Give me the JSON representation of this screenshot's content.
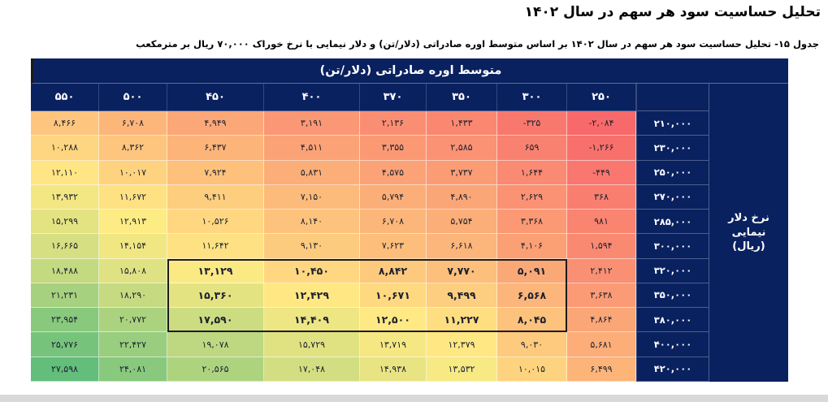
{
  "page": {
    "title": "تحلیل حساسیت سود هر سهم در سال ۱۴۰۲",
    "subtitle": "جدول ۱۵- تحلیل حساسیت سود هر سهم در سال ۱۴۰۲ بر اساس متوسط اوره صادراتی (دلار/تن) و دلار نیمایی با نرخ خوراک ۷۰,۰۰۰ ریال بر مترمکعب"
  },
  "chart_data": {
    "type": "heatmap",
    "title": "تحلیل حساسیت سود هر سهم در سال ۱۴۰۲",
    "col_header_label": "متوسط اوره صادراتی (دلار/تن)",
    "row_header_label": "نرخ دلار نیمایی (ریال)",
    "columns_display_order": "left-to-right",
    "columns": [
      550,
      500,
      450,
      400,
      370,
      350,
      300,
      250
    ],
    "rows": [
      210000,
      230000,
      250000,
      270000,
      285000,
      300000,
      320000,
      350000,
      380000,
      400000,
      420000
    ],
    "values": [
      [
        8466,
        6708,
        4949,
        3191,
        2136,
        1433,
        -325,
        -2084
      ],
      [
        10288,
        8362,
        6437,
        4511,
        3355,
        2585,
        659,
        -1266
      ],
      [
        12110,
        10017,
        7924,
        5831,
        4575,
        3737,
        1644,
        -449
      ],
      [
        13932,
        11672,
        9411,
        7150,
        5794,
        4890,
        2629,
        368
      ],
      [
        15299,
        12913,
        10526,
        8140,
        6708,
        5754,
        3368,
        981
      ],
      [
        16665,
        14154,
        11642,
        9130,
        7623,
        6618,
        4106,
        1594
      ],
      [
        18488,
        15808,
        13129,
        10450,
        8842,
        7770,
        5091,
        2412
      ],
      [
        21231,
        18290,
        15360,
        12429,
        10671,
        9499,
        6568,
        3638
      ],
      [
        23954,
        20772,
        17590,
        14409,
        12500,
        11227,
        8045,
        4864
      ],
      [
        25776,
        22427,
        19078,
        15729,
        13719,
        12379,
        9030,
        5681
      ],
      [
        27598,
        24081,
        20565,
        17048,
        14938,
        13532,
        10015,
        6499
      ]
    ],
    "highlight_box": {
      "row_start": 6,
      "row_end": 8,
      "col_start": 2,
      "col_end": 6
    },
    "color_scale": {
      "min_color": "#F8696B",
      "mid_color": "#FFEB84",
      "max_color": "#63BE7B",
      "midpoint_rule": "midpoint at 50% of min-max range"
    },
    "number_format": "persian-digits with comma thousands separator"
  },
  "colors": {
    "header_navy": "#0a2160",
    "highlight_box_border": "#1c1c1c",
    "cell_text": "#1c2130",
    "bottom_bar": "#d9d9d9"
  }
}
